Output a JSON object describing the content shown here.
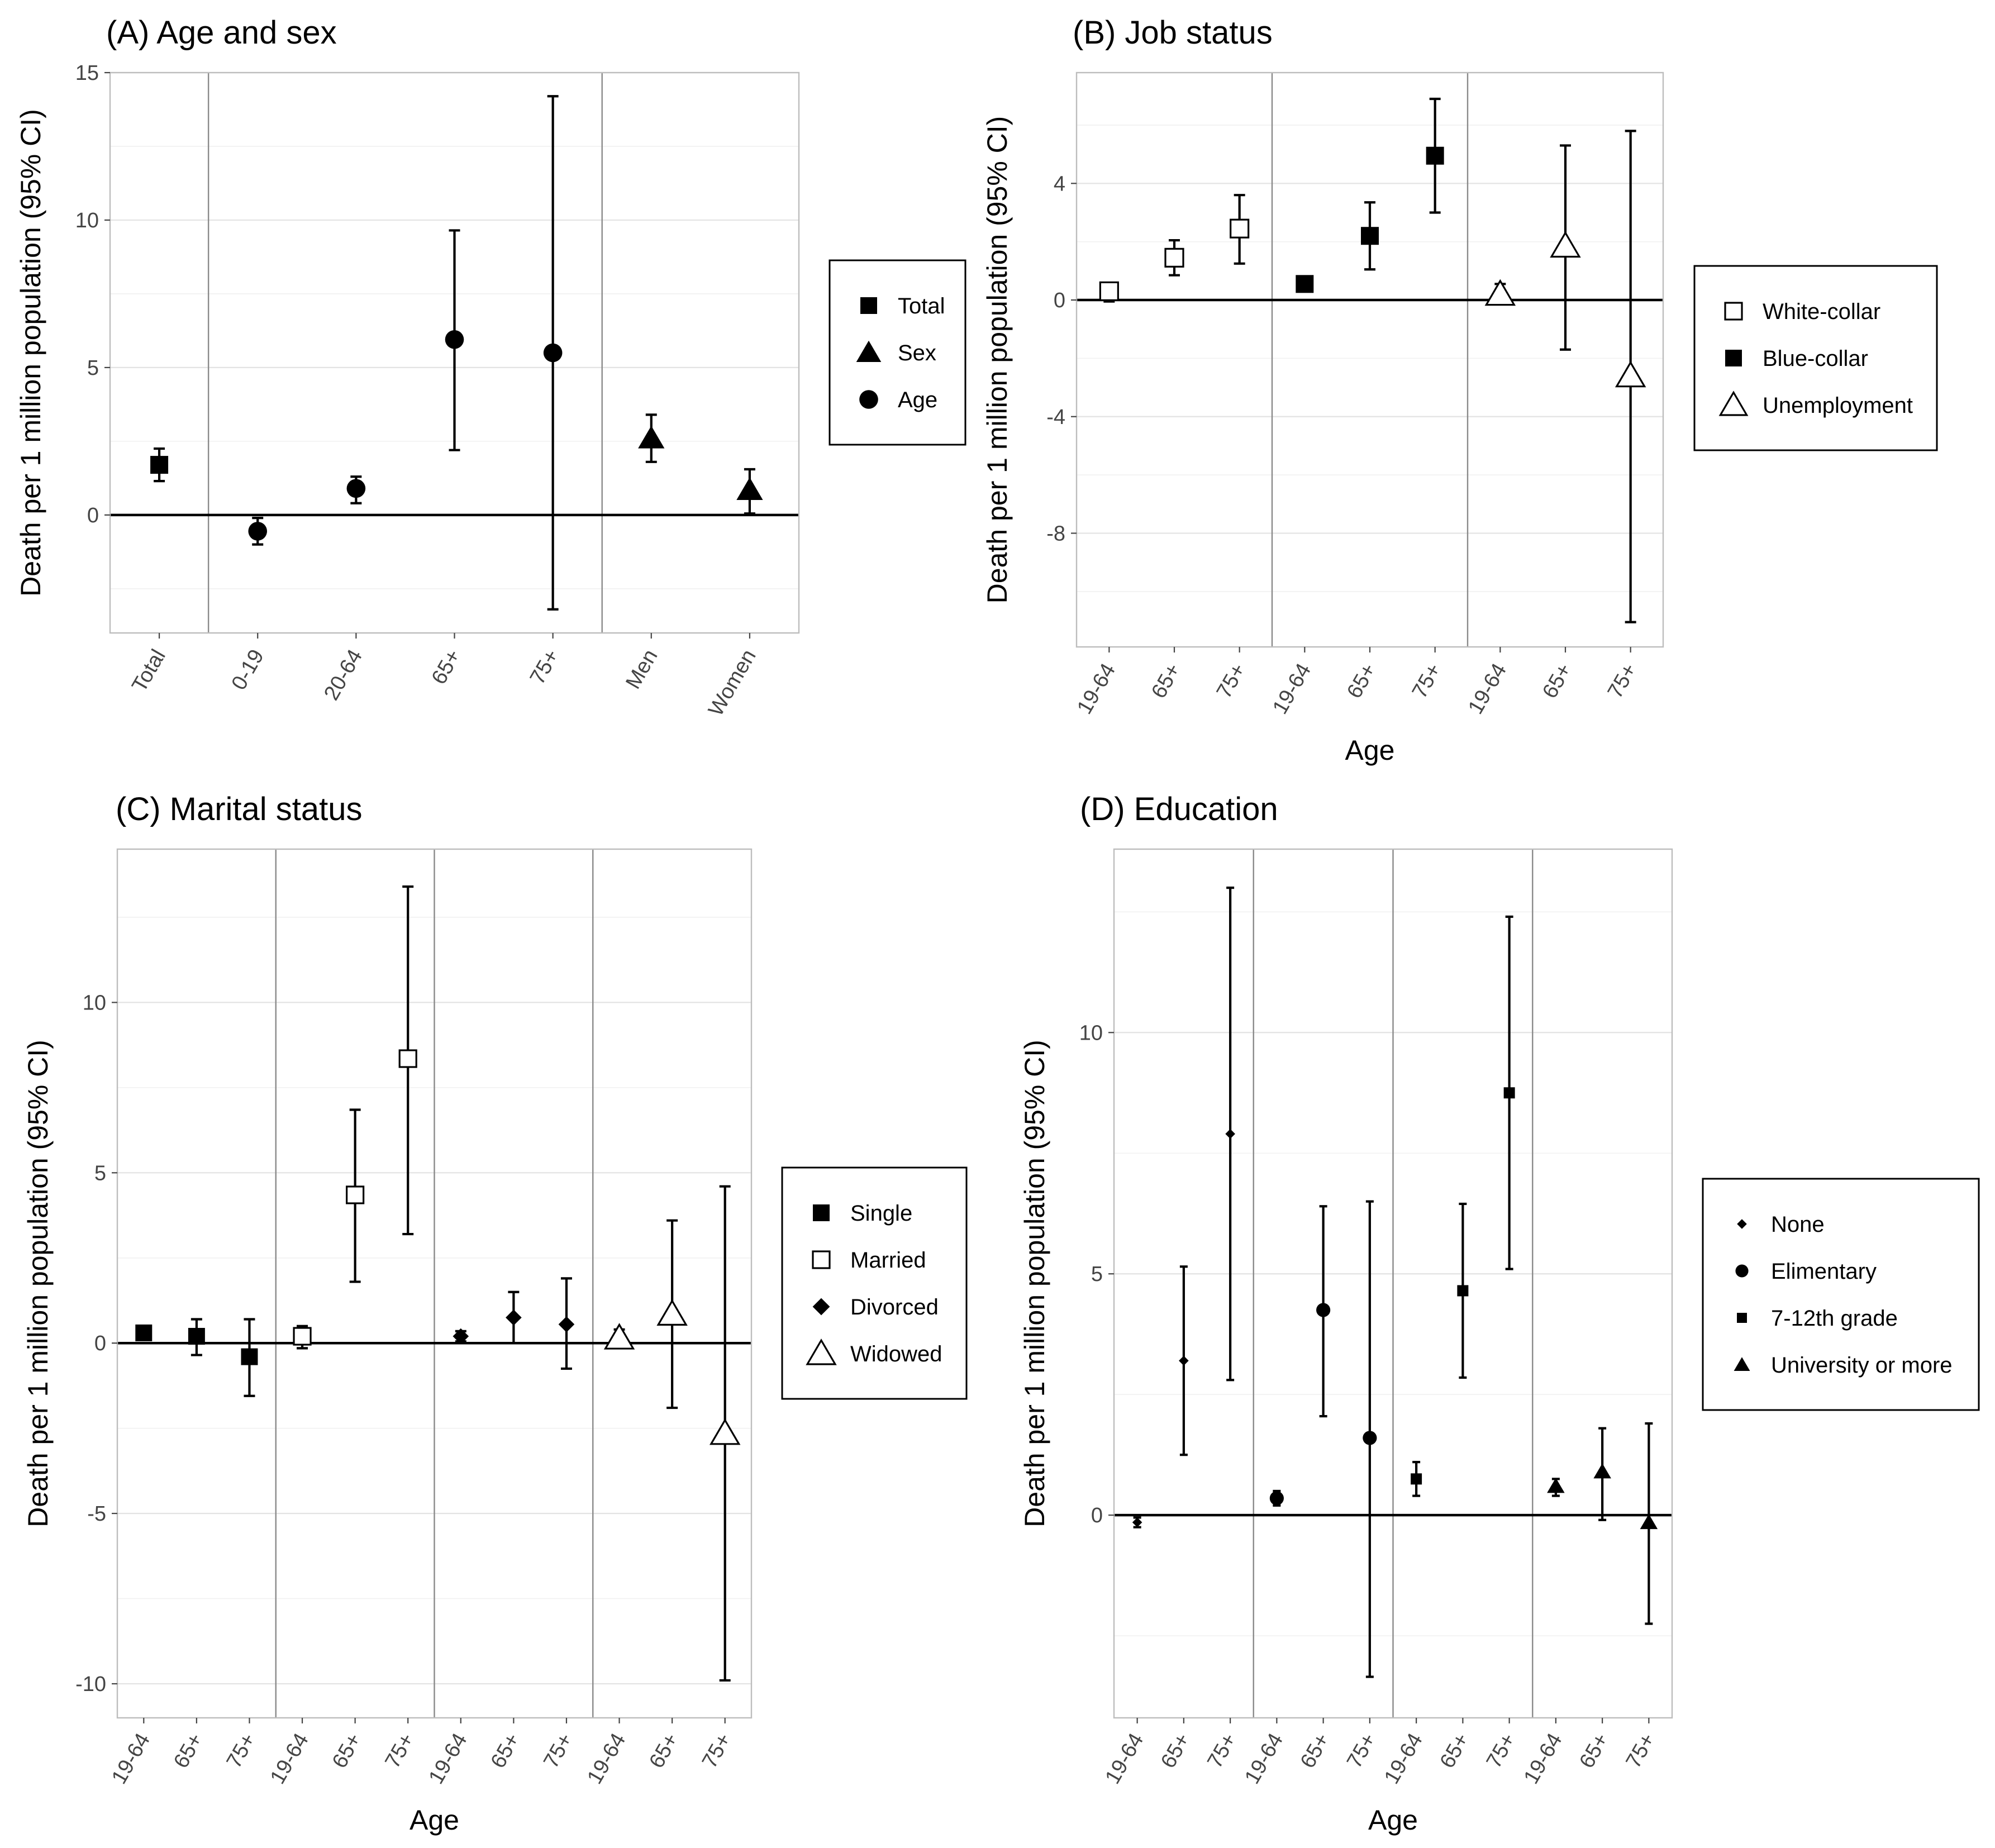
{
  "chart_data": [
    {
      "type": "scatter",
      "title": "(A) Age and sex",
      "xlabel": "",
      "ylabel": "Death per 1 million population (95% CI)",
      "ylim": [
        -4,
        15
      ],
      "yticks": [
        0,
        5,
        10,
        15
      ],
      "grid": true,
      "legend_position": "right",
      "categories": [
        "Total",
        "0-19",
        "20-64",
        "65+",
        "75+",
        "Men",
        "Women"
      ],
      "group_separators_after": [
        1,
        5
      ],
      "legend": [
        {
          "name": "Total",
          "shape": "square",
          "fill": "filled"
        },
        {
          "name": "Sex",
          "shape": "triangle",
          "fill": "filled"
        },
        {
          "name": "Age",
          "shape": "circle",
          "fill": "filled"
        }
      ],
      "points": [
        {
          "x": "Total",
          "series": "Total",
          "y": 1.7,
          "lo": 1.15,
          "hi": 2.25
        },
        {
          "x": "0-19",
          "series": "Age",
          "y": -0.55,
          "lo": -1.0,
          "hi": -0.1
        },
        {
          "x": "20-64",
          "series": "Age",
          "y": 0.9,
          "lo": 0.4,
          "hi": 1.3
        },
        {
          "x": "65+",
          "series": "Age",
          "y": 5.95,
          "lo": 2.2,
          "hi": 9.65
        },
        {
          "x": "75+",
          "series": "Age",
          "y": 5.5,
          "lo": -3.2,
          "hi": 14.2
        },
        {
          "x": "Men",
          "series": "Sex",
          "y": 2.6,
          "lo": 1.8,
          "hi": 3.4
        },
        {
          "x": "Women",
          "series": "Sex",
          "y": 0.85,
          "lo": 0.05,
          "hi": 1.55
        }
      ]
    },
    {
      "type": "scatter",
      "title": "(B) Job status",
      "xlabel": "Age",
      "ylabel": "Death per 1 million population (95% CI)",
      "ylim": [
        -11.9,
        7.8
      ],
      "yticks": [
        -8,
        -4,
        0,
        4
      ],
      "grid": true,
      "legend_position": "right",
      "categories": [
        "19-64",
        "65+",
        "75+",
        "19-64",
        "65+",
        "75+",
        "19-64",
        "65+",
        "75+"
      ],
      "group_separators_after": [
        3,
        6
      ],
      "legend": [
        {
          "name": "White-collar",
          "shape": "square",
          "fill": "open"
        },
        {
          "name": "Blue-collar",
          "shape": "square",
          "fill": "filled"
        },
        {
          "name": "Unemployment",
          "shape": "triangle",
          "fill": "open"
        }
      ],
      "points": [
        {
          "x": 1,
          "series": "White-collar",
          "y": 0.3,
          "lo": -0.05,
          "hi": 0.55
        },
        {
          "x": 2,
          "series": "White-collar",
          "y": 1.45,
          "lo": 0.85,
          "hi": 2.05
        },
        {
          "x": 3,
          "series": "White-collar",
          "y": 2.45,
          "lo": 1.25,
          "hi": 3.6
        },
        {
          "x": 4,
          "series": "Blue-collar",
          "y": 0.55,
          "lo": 0.4,
          "hi": 0.7
        },
        {
          "x": 5,
          "series": "Blue-collar",
          "y": 2.2,
          "lo": 1.05,
          "hi": 3.35
        },
        {
          "x": 6,
          "series": "Blue-collar",
          "y": 4.95,
          "lo": 3.0,
          "hi": 6.9
        },
        {
          "x": 7,
          "series": "Unemployment",
          "y": 0.2,
          "lo": -0.1,
          "hi": 0.55
        },
        {
          "x": 8,
          "series": "Unemployment",
          "y": 1.85,
          "lo": -1.7,
          "hi": 5.3
        },
        {
          "x": 9,
          "series": "Unemployment",
          "y": -2.6,
          "lo": -11.05,
          "hi": 5.8
        }
      ]
    },
    {
      "type": "scatter",
      "title": "(C) Marital status",
      "xlabel": "Age",
      "ylabel": "Death per 1 million population (95% CI)",
      "ylim": [
        -11.0,
        14.5
      ],
      "yticks": [
        -10,
        -5,
        0,
        5,
        10
      ],
      "grid": true,
      "legend_position": "right",
      "categories": [
        "19-64",
        "65+",
        "75+",
        "19-64",
        "65+",
        "75+",
        "19-64",
        "65+",
        "75+",
        "19-64",
        "65+",
        "75+"
      ],
      "group_separators_after": [
        3,
        6,
        9
      ],
      "legend": [
        {
          "name": "Single",
          "shape": "square",
          "fill": "filled"
        },
        {
          "name": "Married",
          "shape": "square",
          "fill": "open"
        },
        {
          "name": "Divorced",
          "shape": "diamond",
          "fill": "filled"
        },
        {
          "name": "Widowed",
          "shape": "triangle",
          "fill": "open"
        }
      ],
      "points": [
        {
          "x": 1,
          "series": "Single",
          "y": 0.3,
          "lo": 0.15,
          "hi": 0.45
        },
        {
          "x": 2,
          "series": "Single",
          "y": 0.2,
          "lo": -0.35,
          "hi": 0.7
        },
        {
          "x": 3,
          "series": "Single",
          "y": -0.4,
          "lo": -1.55,
          "hi": 0.7
        },
        {
          "x": 4,
          "series": "Married",
          "y": 0.2,
          "lo": -0.15,
          "hi": 0.5
        },
        {
          "x": 5,
          "series": "Married",
          "y": 4.35,
          "lo": 1.8,
          "hi": 6.85
        },
        {
          "x": 6,
          "series": "Married",
          "y": 8.35,
          "lo": 3.2,
          "hi": 13.4
        },
        {
          "x": 7,
          "series": "Divorced",
          "y": 0.2,
          "lo": 0.05,
          "hi": 0.35
        },
        {
          "x": 8,
          "series": "Divorced",
          "y": 0.75,
          "lo": 0.0,
          "hi": 1.5
        },
        {
          "x": 9,
          "series": "Divorced",
          "y": 0.55,
          "lo": -0.75,
          "hi": 1.9
        },
        {
          "x": 10,
          "series": "Widowed",
          "y": 0.15,
          "lo": -0.05,
          "hi": 0.4
        },
        {
          "x": 11,
          "series": "Widowed",
          "y": 0.85,
          "lo": -1.9,
          "hi": 3.6
        },
        {
          "x": 12,
          "series": "Widowed",
          "y": -2.65,
          "lo": -9.9,
          "hi": 4.6
        }
      ]
    },
    {
      "type": "scatter",
      "title": "(D) Education",
      "xlabel": "Age",
      "ylabel": "Death per 1 million population (95% CI)",
      "ylim": [
        -4.2,
        13.8
      ],
      "yticks": [
        0,
        5,
        10
      ],
      "grid": true,
      "legend_position": "right",
      "categories": [
        "19-64",
        "65+",
        "75+",
        "19-64",
        "65+",
        "75+",
        "19-64",
        "65+",
        "75+",
        "19-64",
        "65+",
        "75+"
      ],
      "group_separators_after": [
        3,
        6,
        9
      ],
      "legend": [
        {
          "name": "None",
          "shape": "diamond",
          "fill": "filled"
        },
        {
          "name": "Elimentary",
          "shape": "circle",
          "fill": "filled"
        },
        {
          "name": "7-12th grade",
          "shape": "square",
          "fill": "filled"
        },
        {
          "name": "University or more",
          "shape": "triangle",
          "fill": "filled"
        }
      ],
      "points": [
        {
          "x": 1,
          "series": "None",
          "y": -0.15,
          "lo": -0.25,
          "hi": -0.05
        },
        {
          "x": 2,
          "series": "None",
          "y": 3.2,
          "lo": 1.25,
          "hi": 5.15
        },
        {
          "x": 3,
          "series": "None",
          "y": 7.9,
          "lo": 2.8,
          "hi": 13.0
        },
        {
          "x": 4,
          "series": "Elimentary",
          "y": 0.35,
          "lo": 0.2,
          "hi": 0.5
        },
        {
          "x": 5,
          "series": "Elimentary",
          "y": 4.25,
          "lo": 2.05,
          "hi": 6.4
        },
        {
          "x": 6,
          "series": "Elimentary",
          "y": 1.6,
          "lo": -3.35,
          "hi": 6.5
        },
        {
          "x": 7,
          "series": "7-12th grade",
          "y": 0.75,
          "lo": 0.4,
          "hi": 1.1
        },
        {
          "x": 8,
          "series": "7-12th grade",
          "y": 4.65,
          "lo": 2.85,
          "hi": 6.45
        },
        {
          "x": 9,
          "series": "7-12th grade",
          "y": 8.75,
          "lo": 5.1,
          "hi": 12.4
        },
        {
          "x": 10,
          "series": "University or more",
          "y": 0.6,
          "lo": 0.4,
          "hi": 0.75
        },
        {
          "x": 11,
          "series": "University or more",
          "y": 0.9,
          "lo": -0.1,
          "hi": 1.8
        },
        {
          "x": 12,
          "series": "University or more",
          "y": -0.15,
          "lo": -2.25,
          "hi": 1.9
        }
      ]
    }
  ]
}
